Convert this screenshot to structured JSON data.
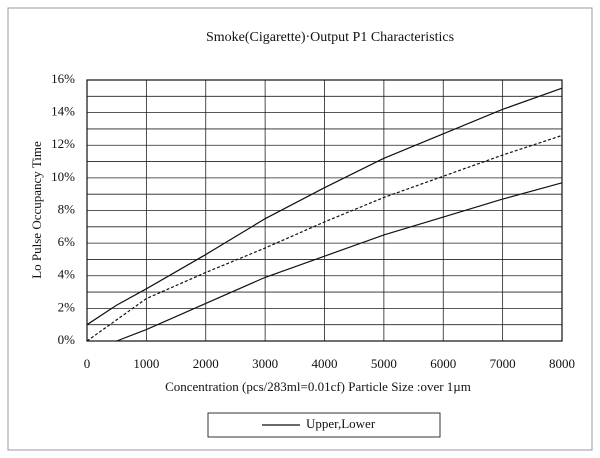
{
  "chart_data": {
    "type": "line",
    "title": "Smoke(Cigarette)·Output P1 Characteristics",
    "x_label": "Concentration (pcs/283ml=0.01cf)  Particle Size :over 1µm",
    "y_label": "Lo Pulse Occupancy Time",
    "x": [
      0,
      500,
      1000,
      2000,
      3000,
      4000,
      5000,
      6000,
      7000,
      8000
    ],
    "series": [
      {
        "name": "Upper,Lower",
        "color": "#111111",
        "dash": false,
        "values": [
          1.0,
          2.2,
          3.2,
          5.3,
          7.5,
          9.4,
          11.2,
          12.7,
          14.2,
          15.5
        ]
      },
      {
        "color": "#111111",
        "dash": true,
        "values": [
          0,
          1.3,
          2.6,
          4.2,
          5.7,
          7.3,
          8.8,
          10.1,
          11.4,
          12.6
        ]
      },
      {
        "color": "#111111",
        "dash": false,
        "values": [
          null,
          0,
          0.7,
          2.3,
          3.9,
          5.2,
          6.5,
          7.6,
          8.7,
          9.7
        ]
      }
    ],
    "xlim": [
      0,
      8000
    ],
    "xticks": [
      0,
      1000,
      2000,
      3000,
      4000,
      5000,
      6000,
      7000,
      8000
    ],
    "ylim": [
      0,
      16
    ],
    "yticks": [
      {
        "value": 0,
        "label": "0%"
      },
      {
        "value": 2,
        "label": "2%"
      },
      {
        "value": 4,
        "label": "4%"
      },
      {
        "value": 6,
        "label": "6%"
      },
      {
        "value": 8,
        "label": "8%"
      },
      {
        "value": 10,
        "label": "10%"
      },
      {
        "value": 12,
        "label": "12%"
      },
      {
        "value": 14,
        "label": "14%"
      },
      {
        "value": 16,
        "label": "16%"
      }
    ],
    "y_minor_gridlines": [
      1,
      3,
      5,
      7,
      9,
      11,
      13,
      15
    ],
    "grid": true
  }
}
